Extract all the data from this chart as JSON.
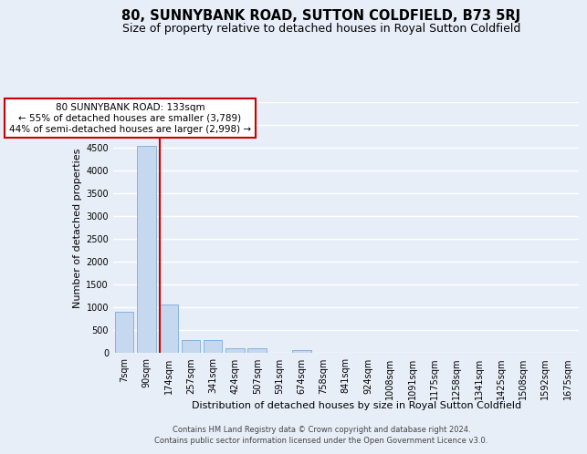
{
  "title": "80, SUNNYBANK ROAD, SUTTON COLDFIELD, B73 5RJ",
  "subtitle": "Size of property relative to detached houses in Royal Sutton Coldfield",
  "xlabel": "Distribution of detached houses by size in Royal Sutton Coldfield",
  "ylabel": "Number of detached properties",
  "footer1": "Contains HM Land Registry data © Crown copyright and database right 2024.",
  "footer2": "Contains public sector information licensed under the Open Government Licence v3.0.",
  "bar_labels": [
    "7sqm",
    "90sqm",
    "174sqm",
    "257sqm",
    "341sqm",
    "424sqm",
    "507sqm",
    "591sqm",
    "674sqm",
    "758sqm",
    "841sqm",
    "924sqm",
    "1008sqm",
    "1091sqm",
    "1175sqm",
    "1258sqm",
    "1341sqm",
    "1425sqm",
    "1508sqm",
    "1592sqm",
    "1675sqm"
  ],
  "bar_values": [
    900,
    4550,
    1055,
    285,
    285,
    95,
    95,
    0,
    60,
    0,
    0,
    0,
    0,
    0,
    0,
    0,
    0,
    0,
    0,
    0,
    0
  ],
  "bar_color": "#c5d8f0",
  "bar_edge_color": "#7aacda",
  "bar_width": 0.85,
  "red_line_x": 1.6,
  "red_line_color": "#cc0000",
  "annotation_text": "80 SUNNYBANK ROAD: 133sqm\n← 55% of detached houses are smaller (3,789)\n44% of semi-detached houses are larger (2,998) →",
  "annotation_box_color": "#ffffff",
  "annotation_box_edge_color": "#cc0000",
  "ylim": [
    0,
    5500
  ],
  "yticks": [
    0,
    500,
    1000,
    1500,
    2000,
    2500,
    3000,
    3500,
    4000,
    4500,
    5000,
    5500
  ],
  "bg_color": "#e8eef8",
  "grid_color": "#ffffff",
  "title_fontsize": 10.5,
  "subtitle_fontsize": 9,
  "axis_label_fontsize": 8,
  "tick_fontsize": 7,
  "footer_fontsize": 6
}
